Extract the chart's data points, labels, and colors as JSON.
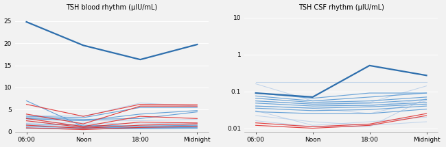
{
  "title_left": "TSH blood rhythm (μIU/mL)",
  "title_right": "TSH CSF rhythm (μIU/mL)",
  "x_labels": [
    "06:00",
    "Noon",
    "18:00",
    "Midnight"
  ],
  "x_positions": [
    0,
    1,
    2,
    3
  ],
  "background_color": "#f2f2f2",
  "plot_bg": "#f2f2f2",
  "blood_highlight_line": [
    24.8,
    19.5,
    16.3,
    19.7
  ],
  "blood_lines_blue": [
    [
      7.0,
      1.2,
      1.0,
      1.3
    ],
    [
      3.5,
      3.2,
      5.5,
      5.5
    ],
    [
      3.2,
      2.8,
      3.0,
      4.5
    ],
    [
      1.8,
      1.5,
      1.3,
      1.5
    ],
    [
      1.2,
      1.0,
      0.9,
      1.0
    ],
    [
      0.8,
      0.7,
      0.7,
      0.8
    ],
    [
      3.0,
      2.5,
      4.0,
      4.8
    ]
  ],
  "blood_lines_red": [
    [
      6.2,
      3.5,
      6.2,
      6.1
    ],
    [
      4.0,
      1.8,
      5.8,
      5.8
    ],
    [
      3.0,
      1.2,
      3.5,
      3.0
    ],
    [
      2.5,
      1.0,
      2.2,
      2.0
    ],
    [
      1.5,
      0.8,
      1.5,
      1.8
    ],
    [
      0.9,
      0.5,
      1.0,
      1.2
    ]
  ],
  "blood_lines_lightblue": [
    [
      3.8,
      3.5,
      6.5,
      5.8
    ],
    [
      2.8,
      2.5,
      2.5,
      2.8
    ],
    [
      2.2,
      2.0,
      1.8,
      2.0
    ],
    [
      1.5,
      1.3,
      1.2,
      1.4
    ],
    [
      1.0,
      0.9,
      0.8,
      0.9
    ]
  ],
  "csf_highlight_line": [
    0.09,
    0.07,
    0.5,
    0.27
  ],
  "csf_lines_blue": [
    [
      0.09,
      0.065,
      0.09,
      0.09
    ],
    [
      0.075,
      0.055,
      0.07,
      0.09
    ],
    [
      0.065,
      0.05,
      0.055,
      0.07
    ],
    [
      0.055,
      0.045,
      0.048,
      0.06
    ],
    [
      0.048,
      0.04,
      0.042,
      0.05
    ],
    [
      0.04,
      0.035,
      0.038,
      0.045
    ],
    [
      0.035,
      0.03,
      0.032,
      0.04
    ],
    [
      0.028,
      0.025,
      0.025,
      0.033
    ]
  ],
  "csf_lines_lightblue": [
    [
      0.18,
      0.18,
      0.18,
      0.18
    ],
    [
      0.16,
      0.055,
      0.05,
      0.14
    ],
    [
      0.055,
      0.045,
      0.04,
      0.06
    ],
    [
      0.04,
      0.035,
      0.025,
      0.055
    ],
    [
      0.03,
      0.012,
      0.015,
      0.02
    ],
    [
      0.022,
      0.015,
      0.012,
      0.015
    ],
    [
      0.016,
      0.011,
      0.011,
      0.065
    ]
  ],
  "csf_lines_red": [
    [
      0.014,
      0.011,
      0.013,
      0.025
    ],
    [
      0.012,
      0.01,
      0.012,
      0.022
    ]
  ],
  "blood_ylim": [
    0,
    27
  ],
  "blood_yticks": [
    0,
    5,
    10,
    15,
    20,
    25
  ],
  "csf_ylim_log": [
    0.008,
    14
  ],
  "csf_yticks_log": [
    0.01,
    0.1,
    1,
    10
  ]
}
